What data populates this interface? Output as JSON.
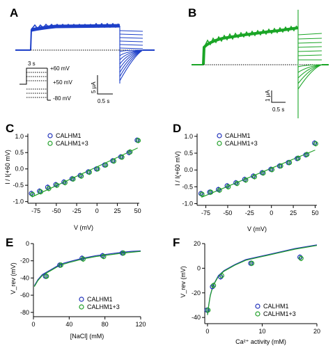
{
  "colors": {
    "calhm1": "#2233bb",
    "calhm13": "#22a02a",
    "trace_blue": "#1d3fc8",
    "trace_green": "#1aa526"
  },
  "panel_a": {
    "label": "A",
    "protocol": {
      "step_duration": "3 s",
      "v_top": "+60 mV",
      "v_step": "+50 mV",
      "v_bottom": "-80 mV"
    },
    "scale_current": "5 μA",
    "scale_time": "0.5 s"
  },
  "panel_b": {
    "label": "B",
    "scale_current": "1 μA",
    "scale_time": "0.5 s"
  },
  "chart_data": [
    {
      "panel": "C",
      "type": "scatter",
      "xlabel": "V (mV)",
      "ylabel": "I / I(+60 mV)",
      "xlim": [
        -85,
        52
      ],
      "ylim": [
        -1.05,
        1.08
      ],
      "xticks": [
        -75,
        -50,
        -25,
        0,
        25,
        50
      ],
      "yticks": [
        -1.0,
        -0.5,
        0.0,
        0.5,
        1.0
      ],
      "xtick_labels": [
        "-75",
        "-50",
        "-25",
        "0",
        "25",
        "50"
      ],
      "ytick_labels": [
        "-1.0",
        "-0.5",
        "0.0",
        "0.5",
        "1.0"
      ],
      "legend_position": "top-left",
      "series": [
        {
          "name": "CALHM1",
          "x": [
            -80,
            -70,
            -60,
            -50,
            -40,
            -30,
            -20,
            -10,
            0,
            10,
            20,
            30,
            40,
            50
          ],
          "y": [
            -0.75,
            -0.68,
            -0.56,
            -0.48,
            -0.4,
            -0.3,
            -0.2,
            -0.09,
            0.0,
            0.12,
            0.25,
            0.37,
            0.5,
            0.88
          ]
        },
        {
          "name": "CALHM1+3",
          "x": [
            -80,
            -70,
            -60,
            -50,
            -40,
            -30,
            -20,
            -10,
            0,
            10,
            20,
            30,
            40,
            50
          ],
          "y": [
            -0.78,
            -0.7,
            -0.6,
            -0.5,
            -0.42,
            -0.31,
            -0.22,
            -0.1,
            0.0,
            0.12,
            0.24,
            0.36,
            0.52,
            0.87
          ]
        }
      ]
    },
    {
      "panel": "D",
      "type": "scatter",
      "xlabel": "V (mV)",
      "ylabel": "I / I(+60 mV)",
      "xlim": [
        -85,
        52
      ],
      "ylim": [
        -1.05,
        1.08
      ],
      "xticks": [
        -75,
        -50,
        -25,
        0,
        25,
        50
      ],
      "yticks": [
        -1.0,
        -0.5,
        0.0,
        0.5,
        1.0
      ],
      "xtick_labels": [
        "-75",
        "-50",
        "-25",
        "0",
        "25",
        "50"
      ],
      "ytick_labels": [
        "-1.0",
        "-0.5",
        "0.0",
        "0.5",
        "1.0"
      ],
      "legend_position": "top-left",
      "series": [
        {
          "name": "CALHM1",
          "x": [
            -80,
            -70,
            -60,
            -50,
            -40,
            -30,
            -20,
            -10,
            0,
            10,
            20,
            30,
            40,
            50
          ],
          "y": [
            -0.7,
            -0.66,
            -0.58,
            -0.47,
            -0.38,
            -0.28,
            -0.18,
            -0.08,
            0.02,
            0.12,
            0.22,
            0.34,
            0.45,
            0.8
          ]
        },
        {
          "name": "CALHM1+3",
          "x": [
            -80,
            -70,
            -60,
            -50,
            -40,
            -30,
            -20,
            -10,
            0,
            10,
            20,
            30,
            40,
            50
          ],
          "y": [
            -0.72,
            -0.66,
            -0.6,
            -0.5,
            -0.4,
            -0.3,
            -0.2,
            -0.09,
            0.01,
            0.12,
            0.22,
            0.35,
            0.46,
            0.78
          ]
        }
      ]
    },
    {
      "panel": "E",
      "type": "scatter",
      "xlabel": "[NaCl] (mM)",
      "ylabel": "V_rev (mV)",
      "xlim": [
        0,
        120
      ],
      "ylim": [
        -85,
        0
      ],
      "xticks": [
        0,
        40,
        80,
        120
      ],
      "yticks": [
        -80,
        -60,
        -40,
        -20,
        0
      ],
      "xtick_labels": [
        "0",
        "40",
        "80",
        "120"
      ],
      "ytick_labels": [
        "-80",
        "-60",
        "-40",
        "-20",
        "0"
      ],
      "legend_position": "bottom-right",
      "series": [
        {
          "name": "CALHM1",
          "x": [
            14,
            30,
            55,
            78,
            100
          ],
          "y": [
            -38,
            -25,
            -17,
            -14,
            -11
          ]
        },
        {
          "name": "CALHM1+3",
          "x": [
            14,
            30,
            55,
            78,
            100
          ],
          "y": [
            -38,
            -25,
            -18,
            -15,
            -11
          ]
        }
      ],
      "fit_curves": [
        {
          "color_key": "calhm1",
          "x": [
            1,
            5,
            10,
            20,
            30,
            40,
            55,
            70,
            85,
            100,
            110,
            120
          ],
          "y": [
            -49,
            -42,
            -36,
            -30,
            -24,
            -21,
            -17,
            -14,
            -12,
            -10,
            -9,
            -8.5
          ]
        },
        {
          "color_key": "calhm13",
          "x": [
            1,
            5,
            10,
            20,
            30,
            40,
            55,
            70,
            85,
            100,
            110,
            120
          ],
          "y": [
            -50,
            -43,
            -37,
            -31,
            -25,
            -22,
            -18,
            -15,
            -13,
            -11,
            -10,
            -9
          ]
        }
      ]
    },
    {
      "panel": "F",
      "type": "scatter",
      "xlabel": "Ca²⁺ activity (mM)",
      "ylabel": "V_rev (mV)",
      "xlim": [
        -0.5,
        20
      ],
      "ylim": [
        -45,
        20
      ],
      "xticks": [
        0,
        10,
        20
      ],
      "yticks": [
        -40,
        -20,
        0,
        20
      ],
      "xtick_labels": [
        "0",
        "10",
        "20"
      ],
      "ytick_labels": [
        "-40",
        "-20",
        "0",
        "20"
      ],
      "legend_position": "bottom-right",
      "series": [
        {
          "name": "CALHM1",
          "x": [
            0,
            1,
            2.5,
            8,
            17
          ],
          "y": [
            -34,
            -15,
            -7,
            4,
            9
          ]
        },
        {
          "name": "CALHM1+3",
          "x": [
            0,
            1,
            2.5,
            8,
            17
          ],
          "y": [
            -34,
            -14,
            -6,
            4,
            8
          ]
        }
      ],
      "fit_curves": [
        {
          "color_key": "calhm1",
          "x": [
            0,
            0.25,
            0.5,
            1,
            2,
            3,
            5,
            7,
            10,
            13,
            16,
            20
          ],
          "y": [
            -38,
            -29,
            -22,
            -14,
            -6,
            -2,
            3,
            7,
            10,
            13,
            16,
            19
          ]
        },
        {
          "color_key": "calhm13",
          "x": [
            0,
            0.25,
            0.5,
            1,
            2,
            3,
            5,
            7,
            10,
            13,
            16,
            20
          ],
          "y": [
            -38,
            -29.5,
            -22.5,
            -14.5,
            -6.5,
            -2.5,
            2.5,
            6.5,
            9.5,
            12.5,
            15.5,
            18.5
          ]
        }
      ]
    }
  ]
}
